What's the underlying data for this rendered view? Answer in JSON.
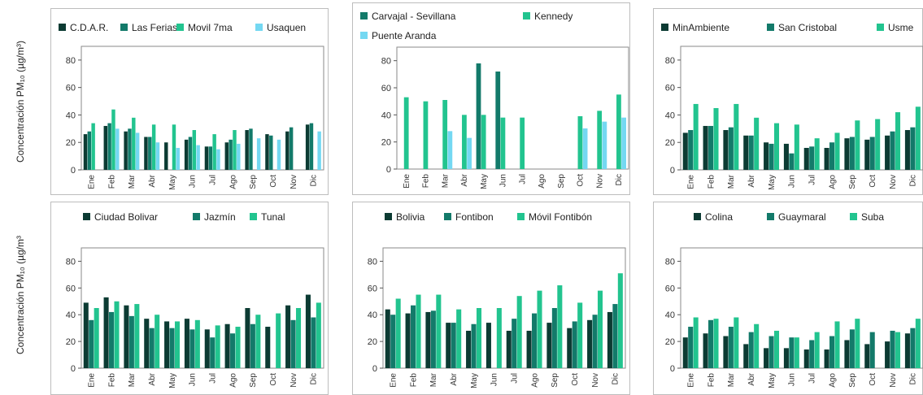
{
  "y_axis_labels": [
    "Concentración PM₁₀ (µg/m³)",
    "Concentración PM₁₀ (µg/m³"
  ],
  "months": [
    "Ene",
    "Feb",
    "Mar",
    "Abr",
    "May",
    "Jun",
    "Jul",
    "Ago",
    "Sep",
    "Oct",
    "Nov",
    "Dic"
  ],
  "chart_data": [
    {
      "type": "bar",
      "xlabel": "",
      "ylabel": "Concentración PM₁₀ (µg/m³)",
      "ylim": [
        0,
        90
      ],
      "yticks": [
        0,
        20,
        40,
        60,
        80
      ],
      "legend_position": "top",
      "categories": [
        "Ene",
        "Feb",
        "Mar",
        "Abr",
        "May",
        "Jun",
        "Jul",
        "Ago",
        "Sep",
        "Oct",
        "Nov",
        "Dic"
      ],
      "series": [
        {
          "name": "C.D.A.R.",
          "color": "#0c3b33",
          "values": [
            26,
            32,
            28,
            24,
            20,
            22,
            17,
            20,
            29,
            26,
            28,
            33
          ]
        },
        {
          "name": "Las Ferias",
          "color": "#137a6a",
          "values": [
            28,
            34,
            30,
            24,
            null,
            24,
            17,
            22,
            30,
            25,
            31,
            34
          ]
        },
        {
          "name": "Movil 7ma",
          "color": "#22c48f",
          "values": [
            34,
            44,
            38,
            33,
            33,
            29,
            26,
            29,
            null,
            null,
            null,
            null
          ]
        },
        {
          "name": "Usaquen",
          "color": "#74d8f2",
          "values": [
            null,
            30,
            27,
            20,
            16,
            18,
            15,
            19,
            23,
            22,
            null,
            28
          ]
        }
      ]
    },
    {
      "type": "bar",
      "xlabel": "",
      "ylabel": "",
      "ylim": [
        0,
        90
      ],
      "yticks": [
        0,
        20,
        40,
        60,
        80
      ],
      "legend_position": "top",
      "categories": [
        "Ene",
        "Feb",
        "Mar",
        "Abr",
        "May",
        "Jun",
        "Jul",
        "Ago",
        "Sep",
        "Oct",
        "Nov",
        "Dic"
      ],
      "series": [
        {
          "name": "Carvajal - Sevillana",
          "color": "#137a6a",
          "values": [
            null,
            null,
            null,
            null,
            78,
            72,
            null,
            null,
            null,
            null,
            null,
            null
          ]
        },
        {
          "name": "Kennedy",
          "color": "#22c48f",
          "values": [
            53,
            50,
            51,
            40,
            40,
            38,
            38,
            null,
            null,
            39,
            43,
            55
          ]
        },
        {
          "name": "Puente Aranda",
          "color": "#74d8f2",
          "values": [
            null,
            null,
            28,
            23,
            null,
            null,
            null,
            null,
            null,
            30,
            35,
            38
          ]
        }
      ]
    },
    {
      "type": "bar",
      "xlabel": "",
      "ylabel": "",
      "ylim": [
        0,
        90
      ],
      "yticks": [
        0,
        20,
        40,
        60,
        80
      ],
      "legend_position": "top",
      "categories": [
        "Ene",
        "Feb",
        "Mar",
        "Abr",
        "May",
        "Jun",
        "Jul",
        "Ago",
        "Sep",
        "Oct",
        "Nov",
        "Dic"
      ],
      "series": [
        {
          "name": "MinAmbiente",
          "color": "#0c3b33",
          "values": [
            27,
            32,
            29,
            25,
            20,
            19,
            16,
            16,
            23,
            22,
            25,
            29
          ]
        },
        {
          "name": "San Cristobal",
          "color": "#137a6a",
          "values": [
            29,
            32,
            31,
            25,
            19,
            12,
            17,
            20,
            24,
            24,
            28,
            31
          ]
        },
        {
          "name": "Usme",
          "color": "#22c48f",
          "values": [
            48,
            45,
            48,
            38,
            34,
            33,
            23,
            27,
            36,
            37,
            42,
            46
          ]
        }
      ]
    },
    {
      "type": "bar",
      "xlabel": "",
      "ylabel": "Concentración PM₁₀ (µg/m³",
      "ylim": [
        0,
        90
      ],
      "yticks": [
        0,
        20,
        40,
        60,
        80
      ],
      "legend_position": "top",
      "categories": [
        "Ene",
        "Feb",
        "Mar",
        "Abr",
        "May",
        "Jun",
        "Jul",
        "Ago",
        "Sep",
        "Oct",
        "Nov",
        "Dic"
      ],
      "series": [
        {
          "name": "Ciudad Bolivar",
          "color": "#0c3b33",
          "values": [
            49,
            53,
            47,
            37,
            35,
            37,
            29,
            33,
            45,
            31,
            47,
            55
          ]
        },
        {
          "name": "Jazmín",
          "color": "#137a6a",
          "values": [
            36,
            42,
            39,
            30,
            30,
            29,
            23,
            26,
            33,
            null,
            36,
            38
          ]
        },
        {
          "name": "Tunal",
          "color": "#22c48f",
          "values": [
            45,
            50,
            48,
            40,
            35,
            36,
            32,
            31,
            40,
            41,
            45,
            49
          ]
        }
      ]
    },
    {
      "type": "bar",
      "xlabel": "",
      "ylabel": "",
      "ylim": [
        0,
        90
      ],
      "yticks": [
        0,
        20,
        40,
        60,
        80
      ],
      "legend_position": "top",
      "categories": [
        "Ene",
        "Feb",
        "Mar",
        "Abr",
        "May",
        "Jun",
        "Jul",
        "Ago",
        "Sep",
        "Oct",
        "Nov",
        "Dic"
      ],
      "series": [
        {
          "name": "Bolivia",
          "color": "#0c3b33",
          "values": [
            44,
            41,
            42,
            34,
            28,
            34,
            28,
            28,
            34,
            30,
            36,
            42
          ]
        },
        {
          "name": "Fontibon",
          "color": "#137a6a",
          "values": [
            40,
            47,
            43,
            34,
            33,
            null,
            37,
            41,
            45,
            35,
            40,
            48
          ]
        },
        {
          "name": "Móvil Fontibón",
          "color": "#22c48f",
          "values": [
            52,
            55,
            55,
            44,
            45,
            45,
            54,
            58,
            62,
            49,
            58,
            71
          ]
        }
      ]
    },
    {
      "type": "bar",
      "xlabel": "",
      "ylabel": "",
      "ylim": [
        0,
        90
      ],
      "yticks": [
        0,
        20,
        40,
        60,
        80
      ],
      "legend_position": "top",
      "categories": [
        "Ene",
        "Feb",
        "Mar",
        "Abr",
        "May",
        "Jun",
        "Jul",
        "Ago",
        "Sep",
        "Oct",
        "Nov",
        "Dic"
      ],
      "series": [
        {
          "name": "Colina",
          "color": "#0c3b33",
          "values": [
            23,
            26,
            24,
            18,
            15,
            15,
            14,
            14,
            21,
            18,
            20,
            26
          ]
        },
        {
          "name": "Guaymaral",
          "color": "#137a6a",
          "values": [
            31,
            36,
            31,
            27,
            24,
            23,
            21,
            24,
            29,
            27,
            28,
            30
          ]
        },
        {
          "name": "Suba",
          "color": "#22c48f",
          "values": [
            38,
            37,
            38,
            33,
            28,
            23,
            27,
            35,
            37,
            null,
            27,
            37
          ]
        }
      ]
    }
  ]
}
